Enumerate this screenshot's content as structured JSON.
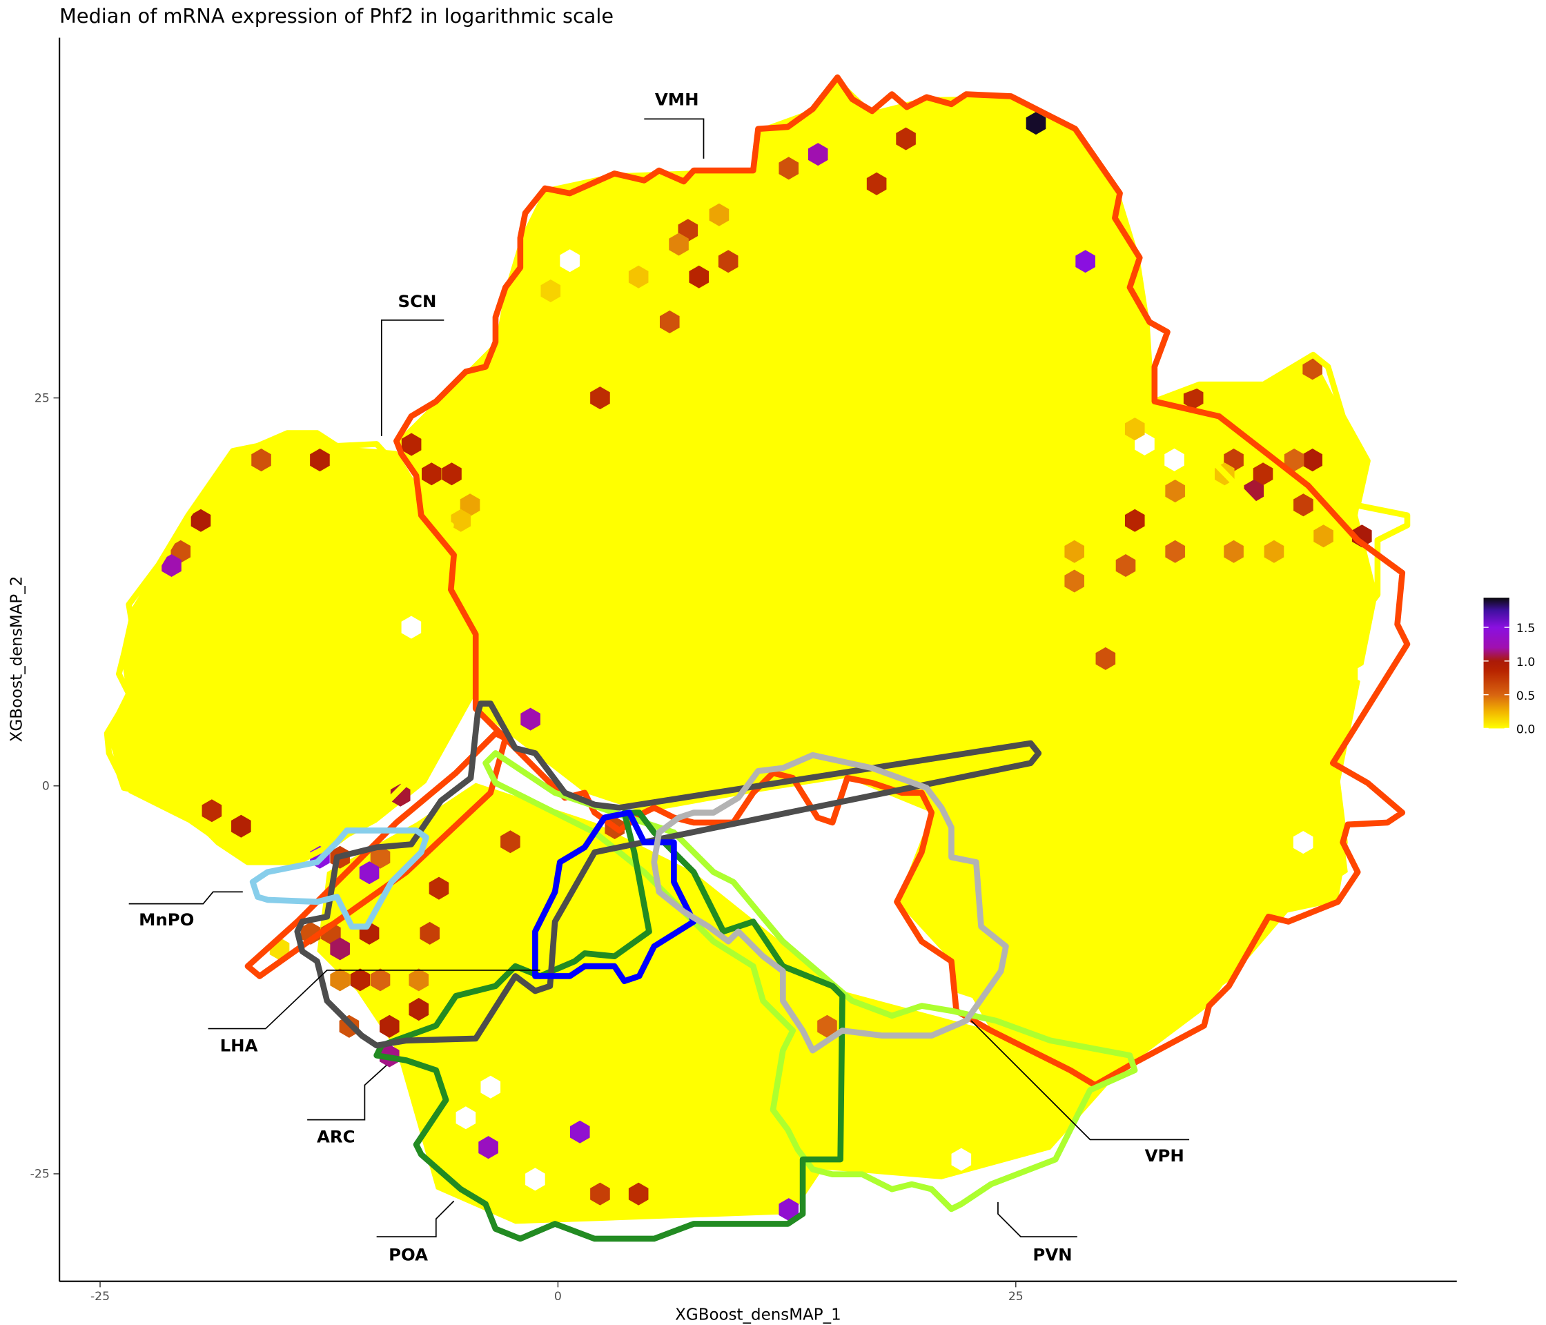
{
  "chart_data": {
    "type": "heatmap",
    "subtype": "hexbin",
    "title": "Median of mRNA expression of Phf2 in logarithmic scale",
    "xlabel": "XGBoost_densMAP_1",
    "ylabel": "XGBoost_densMAP_2",
    "xlim": [
      -27.2,
      49.1
    ],
    "ylim": [
      -31.9,
      48.2
    ],
    "xticks": [
      -25,
      0,
      25
    ],
    "yticks": [
      -25,
      0,
      25
    ],
    "xtick_labels": [
      "-25",
      "0",
      "25"
    ],
    "ytick_labels": [
      "-25",
      "0",
      "25"
    ],
    "grid": false,
    "background_value": 0.0,
    "colorbar": {
      "placement": "right",
      "range": [
        0,
        1.94
      ],
      "ticks": [
        0.0,
        0.5,
        1.0,
        1.5
      ],
      "tick_labels": [
        "0.0",
        "0.5",
        "1.0",
        "1.5"
      ],
      "stops": [
        {
          "v": 0.0,
          "color": "#ffff00"
        },
        {
          "v": 0.25,
          "color": "#f2b400"
        },
        {
          "v": 0.5,
          "color": "#d86410"
        },
        {
          "v": 0.85,
          "color": "#b82400"
        },
        {
          "v": 1.0,
          "color": "#aa1a08"
        },
        {
          "v": 1.2,
          "color": "#a010b0"
        },
        {
          "v": 1.5,
          "color": "#8a10e0"
        },
        {
          "v": 1.75,
          "color": "#4010a0"
        },
        {
          "v": 1.94,
          "color": "#0a0a0a"
        }
      ]
    },
    "nonzero_hexes": [
      {
        "x": 26.1,
        "y": 42.7,
        "v": 1.9
      },
      {
        "x": 14.2,
        "y": 40.7,
        "v": 1.2
      },
      {
        "x": 19.0,
        "y": 41.7,
        "v": 0.8
      },
      {
        "x": 12.6,
        "y": 39.8,
        "v": 0.6
      },
      {
        "x": 17.4,
        "y": 38.8,
        "v": 0.8
      },
      {
        "x": 8.8,
        "y": 36.8,
        "v": 0.3
      },
      {
        "x": 7.1,
        "y": 35.8,
        "v": 0.7
      },
      {
        "x": 6.6,
        "y": 34.9,
        "v": 0.4
      },
      {
        "x": 9.3,
        "y": 33.8,
        "v": 0.7
      },
      {
        "x": 7.7,
        "y": 32.8,
        "v": 0.85
      },
      {
        "x": 4.4,
        "y": 32.8,
        "v": 0.2
      },
      {
        "x": -0.4,
        "y": 31.9,
        "v": 0.15
      },
      {
        "x": 28.8,
        "y": 33.8,
        "v": 1.5
      },
      {
        "x": 6.1,
        "y": 29.9,
        "v": 0.6
      },
      {
        "x": 2.3,
        "y": 25.0,
        "v": 0.8
      },
      {
        "x": -8.0,
        "y": 22.0,
        "v": 0.85
      },
      {
        "x": -6.9,
        "y": 20.1,
        "v": 0.85
      },
      {
        "x": -5.8,
        "y": 20.1,
        "v": 0.85
      },
      {
        "x": -4.8,
        "y": 18.1,
        "v": 0.3
      },
      {
        "x": -5.3,
        "y": 17.1,
        "v": 0.2
      },
      {
        "x": -16.2,
        "y": 21.0,
        "v": 0.6
      },
      {
        "x": -13.0,
        "y": 21.0,
        "v": 0.9
      },
      {
        "x": -19.5,
        "y": 17.1,
        "v": 0.95
      },
      {
        "x": -20.6,
        "y": 15.1,
        "v": 0.6
      },
      {
        "x": -21.1,
        "y": 14.2,
        "v": 1.2
      },
      {
        "x": 41.2,
        "y": 26.9,
        "v": 0.6
      },
      {
        "x": 34.7,
        "y": 25.0,
        "v": 0.8
      },
      {
        "x": 31.5,
        "y": 23.0,
        "v": 0.2
      },
      {
        "x": 36.9,
        "y": 21.0,
        "v": 0.7
      },
      {
        "x": 41.2,
        "y": 21.0,
        "v": 0.95
      },
      {
        "x": 40.2,
        "y": 21.0,
        "v": 0.5
      },
      {
        "x": 38.5,
        "y": 20.1,
        "v": 0.8
      },
      {
        "x": 36.4,
        "y": 20.1,
        "v": 0.2
      },
      {
        "x": 38.0,
        "y": 19.0,
        "v": 1.05
      },
      {
        "x": 33.7,
        "y": 19.0,
        "v": 0.4
      },
      {
        "x": 40.7,
        "y": 18.1,
        "v": 0.7
      },
      {
        "x": 31.5,
        "y": 17.1,
        "v": 0.85
      },
      {
        "x": 41.8,
        "y": 16.1,
        "v": 0.3
      },
      {
        "x": 43.9,
        "y": 16.1,
        "v": 1.0
      },
      {
        "x": 28.2,
        "y": 15.1,
        "v": 0.3
      },
      {
        "x": 33.7,
        "y": 15.1,
        "v": 0.5
      },
      {
        "x": 36.9,
        "y": 15.1,
        "v": 0.4
      },
      {
        "x": 39.1,
        "y": 15.1,
        "v": 0.3
      },
      {
        "x": 31.0,
        "y": 14.2,
        "v": 0.55
      },
      {
        "x": 28.2,
        "y": 13.2,
        "v": 0.45
      },
      {
        "x": 29.9,
        "y": 8.2,
        "v": 0.6
      },
      {
        "x": -1.5,
        "y": 4.3,
        "v": 1.2
      },
      {
        "x": -8.6,
        "y": -0.6,
        "v": 1.05
      },
      {
        "x": -18.9,
        "y": -1.6,
        "v": 0.8
      },
      {
        "x": -17.3,
        "y": -2.6,
        "v": 0.9
      },
      {
        "x": -13.0,
        "y": -4.6,
        "v": 1.5
      },
      {
        "x": -11.9,
        "y": -4.6,
        "v": 0.7
      },
      {
        "x": -9.7,
        "y": -4.6,
        "v": 0.5
      },
      {
        "x": -10.3,
        "y": -5.6,
        "v": 1.4
      },
      {
        "x": -6.5,
        "y": -6.6,
        "v": 0.8
      },
      {
        "x": -13.5,
        "y": -9.5,
        "v": 0.6
      },
      {
        "x": -12.4,
        "y": -9.5,
        "v": 0.65
      },
      {
        "x": -10.3,
        "y": -9.5,
        "v": 0.9
      },
      {
        "x": -7.0,
        "y": -9.5,
        "v": 0.7
      },
      {
        "x": -11.9,
        "y": -10.5,
        "v": 1.1
      },
      {
        "x": -15.2,
        "y": -10.5,
        "v": 0.1
      },
      {
        "x": -11.9,
        "y": -12.5,
        "v": 0.4
      },
      {
        "x": -10.8,
        "y": -12.5,
        "v": 0.85
      },
      {
        "x": -9.7,
        "y": -12.5,
        "v": 0.5
      },
      {
        "x": -7.6,
        "y": -12.5,
        "v": 0.4
      },
      {
        "x": -7.6,
        "y": -14.4,
        "v": 0.9
      },
      {
        "x": -9.2,
        "y": -15.5,
        "v": 0.9
      },
      {
        "x": -11.4,
        "y": -15.5,
        "v": 0.6
      },
      {
        "x": -9.2,
        "y": -17.4,
        "v": 1.15
      },
      {
        "x": -2.6,
        "y": -3.6,
        "v": 0.7
      },
      {
        "x": 3.1,
        "y": -2.7,
        "v": 0.65
      },
      {
        "x": 14.7,
        "y": -15.5,
        "v": 0.5
      },
      {
        "x": 1.2,
        "y": -22.3,
        "v": 1.4
      },
      {
        "x": -3.8,
        "y": -23.3,
        "v": 1.3
      },
      {
        "x": 2.3,
        "y": -26.3,
        "v": 0.7
      },
      {
        "x": 4.4,
        "y": -26.3,
        "v": 0.8
      },
      {
        "x": 12.6,
        "y": -27.3,
        "v": 1.4
      }
    ],
    "regions": [
      {
        "name": "VMH",
        "color": "#ff4500"
      },
      {
        "name": "SCN",
        "color": "#ffff00"
      },
      {
        "name": "MnPO",
        "color": "#87ceeb"
      },
      {
        "name": "LHA",
        "color": "#4d4d4d"
      },
      {
        "name": "ARC",
        "color": "#0000ff"
      },
      {
        "name": "POA",
        "color": "#228b22"
      },
      {
        "name": "PVN",
        "color": "#adff2f"
      },
      {
        "name": "VPH",
        "color": "#b3b3b3"
      }
    ]
  }
}
